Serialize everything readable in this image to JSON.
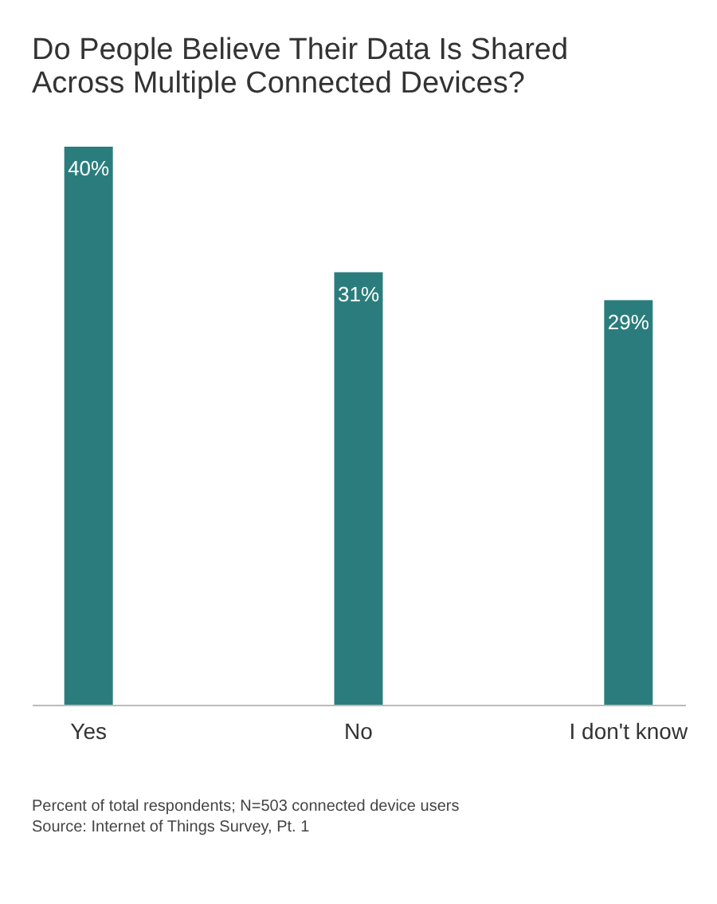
{
  "chart_data": {
    "type": "bar",
    "title": "Do People Believe Their Data Is Shared\nAcross Multiple Connected Devices?",
    "categories": [
      "Yes",
      "No",
      "I don't know"
    ],
    "values": [
      40,
      31,
      29
    ],
    "value_labels": [
      "40%",
      "31%",
      "29%"
    ],
    "color": "#2b7d7d",
    "grid": false,
    "annotations": [
      "Percent of total respondents; N=503 connected device users",
      "Source: Internet of Things Survey, Pt. 1"
    ]
  }
}
